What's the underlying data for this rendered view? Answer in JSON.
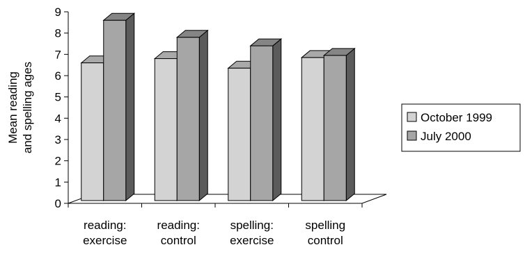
{
  "chart_data": {
    "type": "bar",
    "categories": [
      [
        "reading:",
        "exercise"
      ],
      [
        "reading:",
        "control"
      ],
      [
        "spelling:",
        "exercise"
      ],
      [
        "spelling",
        "control"
      ]
    ],
    "series": [
      {
        "name": "October 1999",
        "color": "#d3d3d3",
        "values": [
          6.6,
          6.8,
          6.35,
          6.85
        ]
      },
      {
        "name": "July 2000",
        "color": "#a6a6a6",
        "values": [
          8.6,
          7.8,
          7.4,
          6.95
        ]
      }
    ],
    "title": "",
    "xlabel": "",
    "ylabel": [
      "Mean reading",
      "and spelling ages"
    ],
    "ylim": [
      0,
      9
    ],
    "yticks": [
      "0",
      "1",
      "2",
      "3",
      "4",
      "5",
      "6",
      "7",
      "8",
      "9"
    ],
    "grid": false,
    "legend_position": "right",
    "three_d": true
  }
}
